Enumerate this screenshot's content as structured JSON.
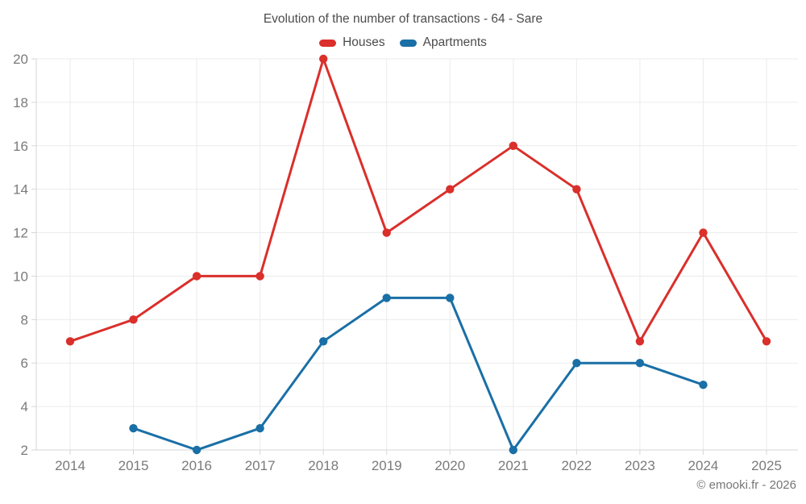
{
  "footer": "© emooki.fr - 2026",
  "style": {
    "background": "#ffffff",
    "grid": "#ebebeb",
    "axis": "#d6d6d6",
    "tick_text": "#7a7a7a",
    "title_text": "#4c4c4c",
    "footer_text": "#767676",
    "houses_color": "#da2f2b",
    "apartments_color": "#1a6fa6"
  },
  "chart_data": {
    "type": "line",
    "title": "Evolution of the number of transactions - 64 - Sare",
    "categories": [
      2014,
      2015,
      2016,
      2017,
      2018,
      2019,
      2020,
      2021,
      2022,
      2023,
      2024,
      2025
    ],
    "series": [
      {
        "name": "Houses",
        "color": "#da2f2b",
        "values": [
          7,
          8,
          10,
          10,
          20,
          12,
          14,
          16,
          14,
          7,
          12,
          7
        ]
      },
      {
        "name": "Apartments",
        "color": "#1a6fa6",
        "values": [
          null,
          3,
          2,
          3,
          7,
          9,
          9,
          2,
          6,
          6,
          5,
          null
        ]
      }
    ],
    "xlabel": "",
    "ylabel": "",
    "ylim": [
      2,
      20
    ],
    "ytick_step": 2,
    "grid": true,
    "legend_position": "top"
  }
}
